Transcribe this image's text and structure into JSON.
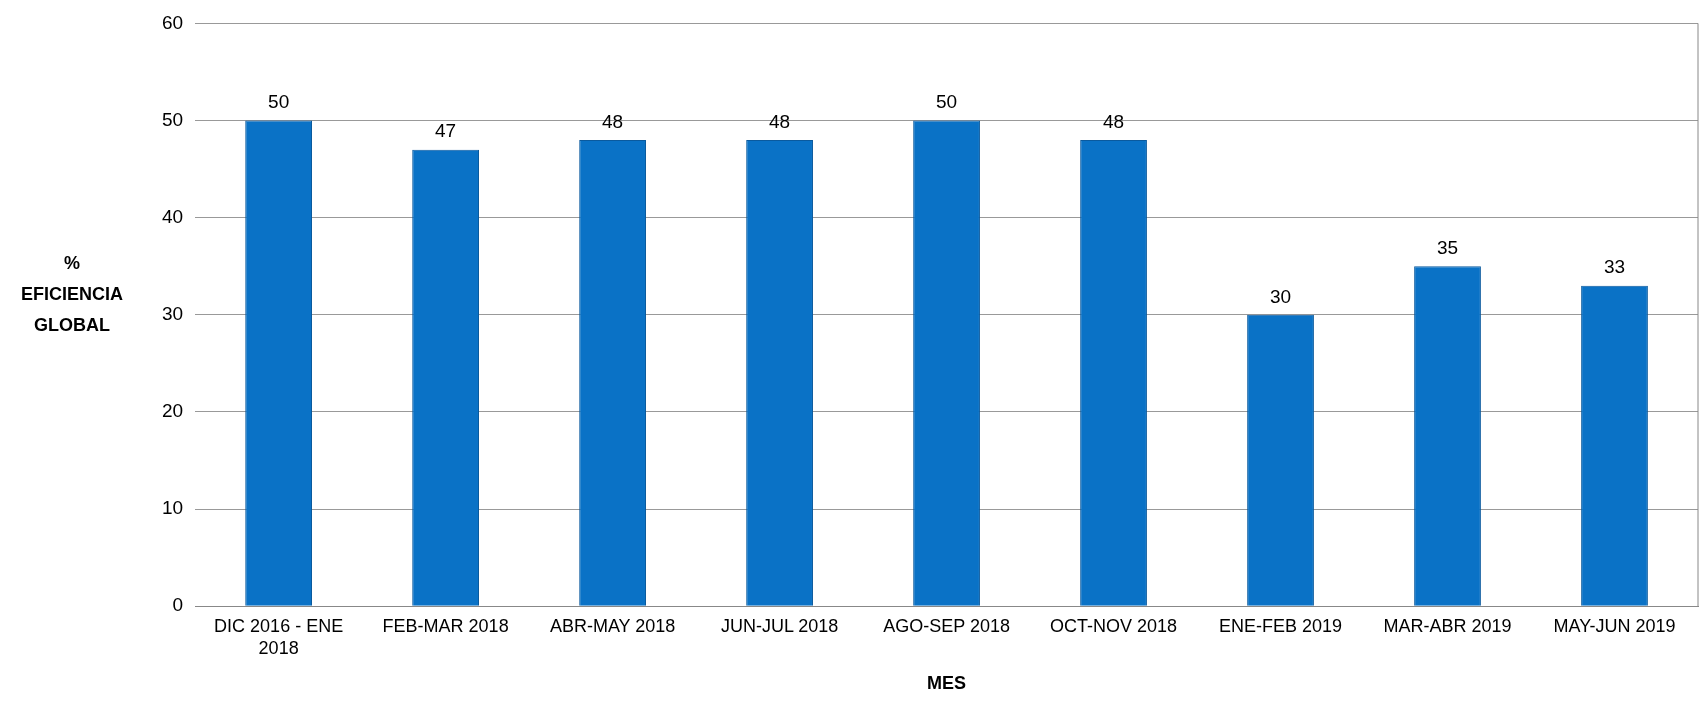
{
  "chart_data": {
    "type": "bar",
    "xlabel": "MES",
    "ylabel": "% EFICIENCIA GLOBAL",
    "categories": [
      "DIC 2016 - ENE 2018",
      "FEB-MAR 2018",
      "ABR-MAY 2018",
      "JUN-JUL 2018",
      "AGO-SEP 2018",
      "OCT-NOV 2018",
      "ENE-FEB 2019",
      "MAR-ABR 2019",
      "MAY-JUN 2019"
    ],
    "values": [
      50,
      47,
      48,
      48,
      50,
      48,
      30,
      35,
      33
    ],
    "color": "#0a72c6",
    "ylim": [
      0,
      60
    ],
    "yticks": [
      0,
      10,
      20,
      30,
      40,
      50,
      60
    ],
    "grid": "y",
    "data_labels": true,
    "legend": false
  }
}
